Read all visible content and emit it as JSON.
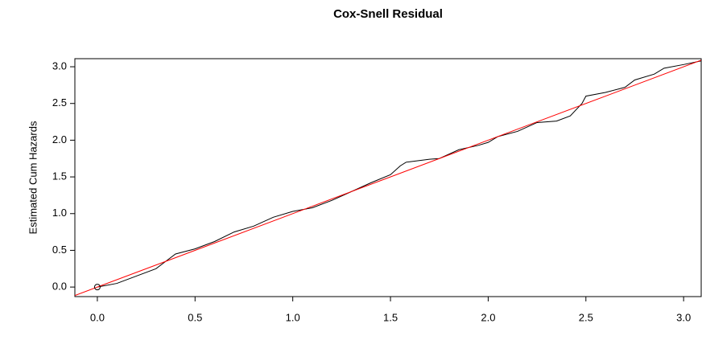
{
  "chart_data": {
    "type": "line",
    "title": "Cox-Snell Residual",
    "y_label": "Estimated Cum Hazards",
    "x": [
      0,
      0.1,
      0.2,
      0.3,
      0.35,
      0.4,
      0.5,
      0.6,
      0.7,
      0.8,
      0.9,
      1.0,
      1.1,
      1.2,
      1.3,
      1.4,
      1.5,
      1.55,
      1.58,
      1.7,
      1.75,
      1.85,
      1.95,
      2.0,
      2.05,
      2.15,
      2.25,
      2.35,
      2.42,
      2.48,
      2.5,
      2.6,
      2.7,
      2.75,
      2.85,
      2.9,
      3.0,
      3.09
    ],
    "series": [
      {
        "color": "#000000",
        "values": [
          0,
          0.05,
          0.15,
          0.25,
          0.35,
          0.45,
          0.52,
          0.62,
          0.75,
          0.83,
          0.95,
          1.03,
          1.08,
          1.18,
          1.3,
          1.42,
          1.53,
          1.65,
          1.7,
          1.74,
          1.75,
          1.87,
          1.93,
          1.97,
          2.05,
          2.12,
          2.24,
          2.26,
          2.33,
          2.5,
          2.6,
          2.65,
          2.72,
          2.82,
          2.9,
          2.98,
          3.03,
          3.08
        ]
      }
    ],
    "reference_line": {
      "slope": 1,
      "intercept": 0,
      "color": "#ff0000"
    },
    "point": {
      "x": 0,
      "y": 0
    },
    "xlim": [
      -0.115,
      3.09
    ],
    "ylim": [
      -0.13,
      3.11
    ],
    "xticks": [
      {
        "value": 0,
        "label": "0.0"
      },
      0.5,
      {
        "value": 1,
        "label": "1.0"
      },
      1.5,
      {
        "value": 2,
        "label": "2.0"
      },
      2.5,
      {
        "value": 3,
        "label": "3.0"
      }
    ],
    "yticks": [
      {
        "value": 0,
        "label": "0.0"
      },
      0.5,
      {
        "value": 1,
        "label": "1.0"
      },
      1.5,
      {
        "value": 2,
        "label": "2.0"
      },
      2.5,
      {
        "value": 3,
        "label": "3.0"
      }
    ]
  }
}
